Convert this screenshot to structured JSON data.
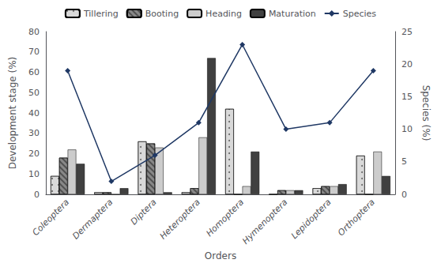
{
  "chart_data": {
    "type": "bar",
    "categories": [
      "Coleoptera",
      "Dermaptera",
      "Diptera",
      "Heteroptera",
      "Homoptera",
      "Hymenoptera",
      "Lepidoptera",
      "Orthoptera"
    ],
    "series": [
      {
        "name": "Tillering",
        "type": "bar",
        "color": "#d9d9d9",
        "values": [
          9,
          1,
          26,
          1,
          42,
          0,
          3,
          19
        ]
      },
      {
        "name": "Booting",
        "type": "bar",
        "color": "#888888",
        "values": [
          18,
          1,
          25,
          3,
          0,
          2,
          4,
          0
        ]
      },
      {
        "name": "Heading",
        "type": "bar",
        "color": "#cccccc",
        "values": [
          22,
          0,
          23,
          28,
          4,
          2,
          4,
          21
        ]
      },
      {
        "name": "Maturation",
        "type": "bar",
        "color": "#404040",
        "values": [
          15,
          3,
          1,
          67,
          21,
          2,
          5,
          9
        ]
      },
      {
        "name": "Species",
        "type": "line",
        "axis": "y2",
        "color": "#1f3864",
        "marker": "diamond",
        "values": [
          19,
          2,
          6,
          11,
          23,
          10,
          11,
          19
        ]
      }
    ],
    "xlabel": "Orders",
    "ylabel": "Development stage (%)",
    "y2label": "Species (%)",
    "ylim": [
      0,
      80
    ],
    "yticks": [
      0,
      10,
      20,
      30,
      40,
      50,
      60,
      70,
      80
    ],
    "y2lim": [
      0,
      25
    ],
    "y2ticks": [
      0,
      5,
      10,
      15,
      20,
      25
    ],
    "grid": false,
    "legend": "top"
  }
}
